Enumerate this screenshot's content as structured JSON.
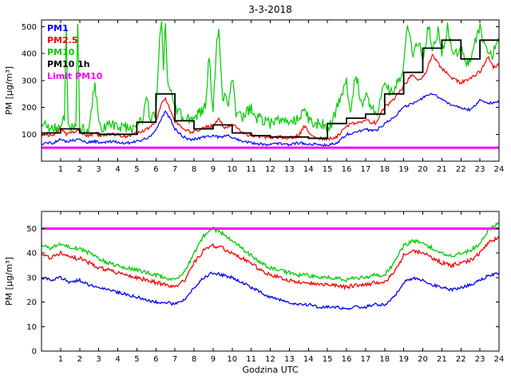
{
  "figure": {
    "title": "3-3-2018",
    "background": "#ffffff",
    "axis_color": "#000000"
  },
  "chart_data": [
    {
      "type": "line",
      "title": "3-3-2018",
      "xlabel": "",
      "ylabel": "PM [µg/m³]",
      "xlim": [
        0,
        24
      ],
      "ylim": [
        0,
        525
      ],
      "xticks": [
        1,
        2,
        3,
        4,
        5,
        6,
        7,
        8,
        9,
        10,
        11,
        12,
        13,
        14,
        15,
        16,
        17,
        18,
        19,
        20,
        21,
        22,
        23,
        24
      ],
      "yticks": [
        100,
        200,
        300,
        400,
        500
      ],
      "grid": false,
      "legend_position": "top-left-inside",
      "legend": [
        {
          "label": "PM1",
          "color": "#0000ff"
        },
        {
          "label": "PM2.5",
          "color": "#ff0000"
        },
        {
          "label": "PM10",
          "color": "#00cc00"
        },
        {
          "label": "PM10 1h",
          "color": "#000000"
        },
        {
          "label": "Limit PM10",
          "color": "#ff00ff"
        }
      ],
      "series": [
        {
          "name": "PM1",
          "color": "#0000ff",
          "width": 1.2,
          "jitter": 5,
          "x": [
            0,
            0.3,
            0.6,
            1.0,
            1.3,
            1.6,
            2.0,
            2.4,
            2.8,
            3.2,
            3.6,
            4.0,
            4.4,
            4.8,
            5.2,
            5.6,
            6.0,
            6.3,
            6.5,
            6.8,
            7.0,
            7.4,
            7.8,
            8.2,
            8.6,
            9.0,
            9.4,
            9.8,
            10.2,
            10.6,
            11.0,
            11.5,
            12.0,
            12.5,
            13.0,
            13.5,
            14.0,
            14.5,
            15.0,
            15.5,
            16.0,
            16.5,
            17.0,
            17.5,
            18.0,
            18.5,
            19.0,
            19.5,
            20.0,
            20.5,
            21.0,
            21.5,
            22.0,
            22.5,
            23.0,
            23.5,
            24.0
          ],
          "y": [
            62,
            70,
            66,
            85,
            72,
            78,
            80,
            70,
            74,
            68,
            72,
            70,
            66,
            72,
            76,
            88,
            115,
            160,
            185,
            150,
            120,
            92,
            80,
            85,
            92,
            95,
            88,
            95,
            82,
            74,
            68,
            64,
            62,
            66,
            62,
            68,
            64,
            62,
            60,
            68,
            100,
            108,
            118,
            112,
            140,
            165,
            200,
            215,
            235,
            250,
            230,
            210,
            198,
            190,
            228,
            215,
            220
          ]
        },
        {
          "name": "PM2.5",
          "color": "#ff0000",
          "width": 1.2,
          "jitter": 7,
          "x": [
            0,
            0.3,
            0.6,
            1.0,
            1.3,
            1.6,
            2.0,
            2.4,
            2.8,
            3.2,
            3.6,
            4.0,
            4.4,
            4.8,
            5.2,
            5.6,
            6.0,
            6.3,
            6.5,
            6.8,
            7.0,
            7.4,
            7.8,
            8.2,
            8.6,
            9.0,
            9.3,
            9.6,
            10.0,
            10.4,
            10.8,
            11.2,
            11.6,
            12.0,
            12.5,
            13.0,
            13.5,
            13.8,
            14.2,
            14.6,
            15.0,
            15.5,
            16.0,
            16.5,
            17.0,
            17.5,
            18.0,
            18.5,
            19.0,
            19.4,
            19.8,
            20.2,
            20.5,
            21.0,
            21.5,
            22.0,
            22.5,
            23.0,
            23.4,
            23.7,
            24.0
          ],
          "y": [
            88,
            100,
            95,
            122,
            100,
            108,
            112,
            95,
            102,
            95,
            100,
            98,
            92,
            100,
            106,
            122,
            152,
            215,
            232,
            185,
            148,
            118,
            108,
            115,
            125,
            132,
            158,
            122,
            140,
            112,
            100,
            94,
            90,
            86,
            92,
            86,
            96,
            130,
            92,
            86,
            82,
            92,
            132,
            142,
            152,
            142,
            200,
            232,
            280,
            320,
            300,
            335,
            400,
            345,
            312,
            292,
            312,
            332,
            388,
            352,
            358
          ]
        },
        {
          "name": "PM10",
          "color": "#00cc00",
          "width": 1.2,
          "jitter": 22,
          "x": [
            0,
            0.2,
            0.4,
            0.6,
            0.8,
            1.0,
            1.2,
            1.3,
            1.4,
            1.6,
            1.8,
            1.9,
            2.0,
            2.2,
            2.5,
            2.8,
            3.0,
            3.3,
            3.6,
            4.0,
            4.3,
            4.6,
            5.0,
            5.3,
            5.5,
            5.7,
            6.0,
            6.1,
            6.2,
            6.3,
            6.4,
            6.5,
            6.6,
            6.8,
            7.0,
            7.3,
            7.6,
            8.0,
            8.3,
            8.6,
            8.8,
            8.9,
            9.0,
            9.2,
            9.3,
            9.5,
            9.8,
            10.0,
            10.2,
            10.5,
            11.0,
            11.3,
            11.6,
            12.0,
            12.4,
            12.8,
            13.2,
            13.6,
            13.8,
            14.0,
            14.4,
            14.8,
            15.2,
            15.5,
            15.8,
            16.0,
            16.2,
            16.5,
            16.8,
            17.0,
            17.3,
            17.6,
            18.0,
            18.3,
            18.6,
            19.0,
            19.2,
            19.5,
            19.8,
            20.0,
            20.3,
            20.5,
            20.8,
            21.0,
            21.3,
            21.6,
            22.0,
            22.3,
            22.6,
            23.0,
            23.3,
            23.6,
            24.0
          ],
          "y": [
            120,
            140,
            112,
            132,
            118,
            142,
            160,
            500,
            130,
            122,
            138,
            495,
            132,
            115,
            126,
            300,
            132,
            120,
            140,
            126,
            134,
            120,
            130,
            158,
            250,
            150,
            172,
            300,
            480,
            505,
            350,
            500,
            300,
            250,
            205,
            172,
            152,
            162,
            182,
            200,
            400,
            250,
            182,
            450,
            500,
            250,
            200,
            310,
            182,
            162,
            200,
            162,
            152,
            142,
            152,
            146,
            152,
            162,
            210,
            152,
            142,
            136,
            132,
            200,
            250,
            302,
            182,
            330,
            202,
            250,
            202,
            182,
            302,
            252,
            282,
            352,
            500,
            400,
            450,
            382,
            500,
            420,
            480,
            402,
            500,
            382,
            422,
            352,
            402,
            500,
            422,
            382,
            452
          ]
        },
        {
          "name": "PM10 1h",
          "color": "#000000",
          "width": 1.8,
          "step": true,
          "y": [
            105,
            120,
            105,
            100,
            100,
            145,
            250,
            150,
            120,
            135,
            105,
            95,
            90,
            90,
            85,
            140,
            160,
            175,
            250,
            330,
            420,
            450,
            380,
            450
          ]
        },
        {
          "name": "Limit PM10",
          "color": "#ff00ff",
          "width": 3,
          "x": [
            0,
            24
          ],
          "y": [
            50,
            50
          ]
        }
      ]
    },
    {
      "type": "line",
      "title": "",
      "xlabel": "Godzina UTC",
      "ylabel": "PM [µg/m³]",
      "xlim": [
        0,
        24
      ],
      "ylim": [
        0,
        57
      ],
      "xticks": [
        1,
        2,
        3,
        4,
        5,
        6,
        7,
        8,
        9,
        10,
        11,
        12,
        13,
        14,
        15,
        16,
        17,
        18,
        19,
        20,
        21,
        22,
        23,
        24
      ],
      "yticks": [
        0,
        10,
        20,
        30,
        40,
        50
      ],
      "grid": false,
      "series": [
        {
          "name": "PM1",
          "color": "#0000ff",
          "width": 1.3,
          "jitter": 0.6,
          "x": [
            0,
            0.5,
            1,
            1.5,
            2,
            2.5,
            3,
            3.5,
            4,
            4.5,
            5,
            5.5,
            6,
            6.5,
            7,
            7.5,
            8,
            8.5,
            9,
            9.5,
            10,
            10.5,
            11,
            11.5,
            12,
            12.5,
            13,
            13.5,
            14,
            14.5,
            15,
            15.5,
            16,
            16.5,
            17,
            17.5,
            18,
            18.5,
            19,
            19.5,
            20,
            20.5,
            21,
            21.5,
            22,
            22.5,
            23,
            23.5,
            24
          ],
          "y": [
            30,
            29,
            30,
            28,
            29,
            27,
            26,
            25,
            24,
            23,
            22,
            21,
            20,
            20,
            19,
            21,
            26,
            30,
            32,
            31,
            30,
            28,
            26,
            24,
            22,
            21,
            20,
            19,
            19,
            18,
            18,
            18,
            17,
            18,
            18,
            19,
            19,
            22,
            28,
            30,
            29,
            27,
            26,
            25,
            26,
            27,
            29,
            31,
            32
          ]
        },
        {
          "name": "PM2.5",
          "color": "#ff0000",
          "width": 1.3,
          "jitter": 0.8,
          "x": [
            0,
            0.5,
            1,
            1.5,
            2,
            2.5,
            3,
            3.5,
            4,
            4.5,
            5,
            5.5,
            6,
            6.5,
            7,
            7.5,
            8,
            8.5,
            9,
            9.5,
            10,
            10.5,
            11,
            11.5,
            12,
            12.5,
            13,
            13.5,
            14,
            14.5,
            15,
            15.5,
            16,
            16.5,
            17,
            17.5,
            18,
            18.5,
            19,
            19.5,
            20,
            20.5,
            21,
            21.5,
            22,
            22.5,
            23,
            23.5,
            24
          ],
          "y": [
            39,
            38,
            40,
            38,
            38,
            36,
            34,
            33,
            32,
            31,
            30,
            29,
            28,
            27,
            26,
            29,
            36,
            41,
            43,
            42,
            40,
            38,
            36,
            33,
            31,
            30,
            29,
            28,
            28,
            27,
            27,
            27,
            26,
            27,
            27,
            28,
            28,
            32,
            39,
            41,
            40,
            38,
            36,
            35,
            36,
            37,
            40,
            45,
            46
          ]
        },
        {
          "name": "PM10",
          "color": "#00cc00",
          "width": 1.3,
          "jitter": 0.8,
          "x": [
            0,
            0.5,
            1,
            1.5,
            2,
            2.5,
            3,
            3.5,
            4,
            4.5,
            5,
            5.5,
            6,
            6.5,
            7,
            7.5,
            8,
            8.5,
            9,
            9.5,
            10,
            10.5,
            11,
            11.5,
            12,
            12.5,
            13,
            13.5,
            14,
            14.5,
            15,
            15.5,
            16,
            16.5,
            17,
            17.5,
            18,
            18.5,
            19,
            19.5,
            20,
            20.5,
            21,
            21.5,
            22,
            22.5,
            23,
            23.5,
            24
          ],
          "y": [
            43,
            42,
            44,
            42,
            42,
            40,
            38,
            36,
            35,
            34,
            33,
            32,
            31,
            30,
            29,
            32,
            40,
            47,
            50,
            48,
            45,
            42,
            39,
            36,
            34,
            33,
            32,
            31,
            31,
            30,
            30,
            30,
            29,
            30,
            30,
            31,
            31,
            36,
            43,
            45,
            44,
            42,
            40,
            39,
            40,
            41,
            44,
            50,
            52
          ]
        },
        {
          "name": "Limit PM10",
          "color": "#ff00ff",
          "width": 3,
          "x": [
            0,
            24
          ],
          "y": [
            50,
            50
          ]
        }
      ]
    }
  ]
}
